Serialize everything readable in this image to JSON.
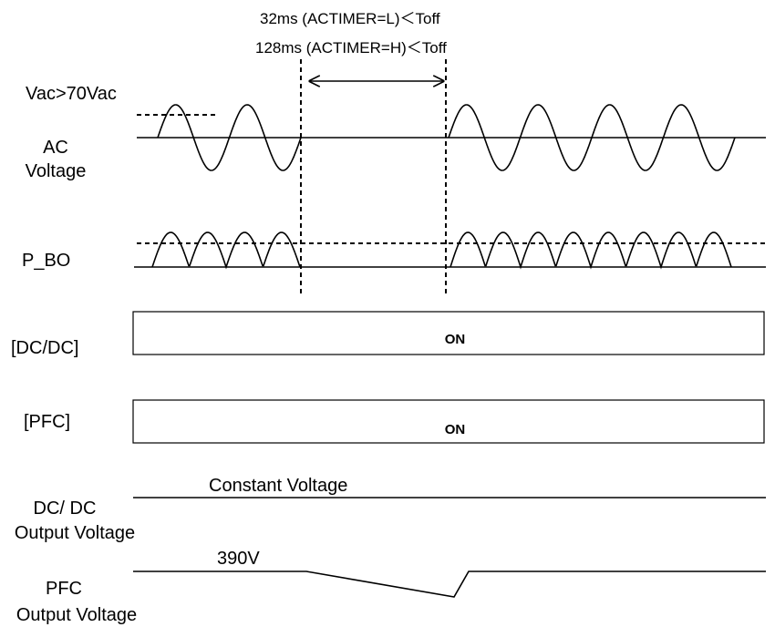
{
  "timing": {
    "line1": "32ms (ACTIMER=L)＜Toff",
    "line2": "128ms (ACTIMER=H)＜Toff"
  },
  "ac": {
    "threshold": "Vac>70Vac",
    "label_line1": "AC",
    "label_line2": "Voltage"
  },
  "p_bo": {
    "label": "P_BO"
  },
  "dcdc_state": {
    "label": "[DC/DC]",
    "value": "ON"
  },
  "pfc_state": {
    "label": "[PFC]",
    "value": "ON"
  },
  "dcdc_output": {
    "label_line1": "DC/ DC",
    "label_line2": "Output Voltage",
    "annotation": "Constant Voltage"
  },
  "pfc_output": {
    "label_line1": "PFC",
    "label_line2": "Output Voltage",
    "annotation": "390V"
  }
}
